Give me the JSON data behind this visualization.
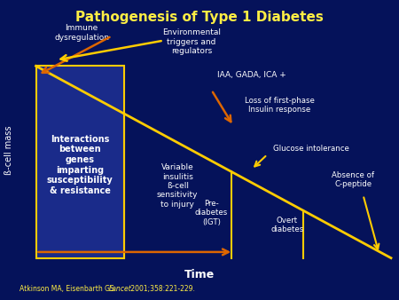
{
  "title": "Pathogenesis of Type 1 Diabetes",
  "bg_color": "#05125a",
  "box_color": "#1a2b8a",
  "title_color": "#ffee44",
  "white": "#ffffff",
  "orange": "#dd6600",
  "yellow": "#ffcc00",
  "ylabel": "ß-cell mass",
  "xlabel": "Time",
  "citation_normal": "Atkinson MA, Eisenbarth GS. ",
  "citation_italic": "Lancet.",
  "citation_end": " 2001;358:221-229.",
  "box_label": "Interactions\nbetween\ngenes\nimparting\nsusceptibility\n& resistance",
  "label_immune": "Immune\ndysregulation",
  "label_env": "Environmental\ntriggers and\nregulators",
  "label_iaa": "IAA, GADA, ICA +",
  "label_loss": "Loss of first-phase\nInsulin response",
  "label_variable": "Variable\ninsulitis\nß-cell\nsensitivity\nto injury",
  "label_glucose": "Glucose intolerance",
  "label_prediab": "Pre-\ndiabetes\n(IGT)",
  "label_overt": "Overt\ndiabetes",
  "label_absence": "Absence of\nC-peptide"
}
